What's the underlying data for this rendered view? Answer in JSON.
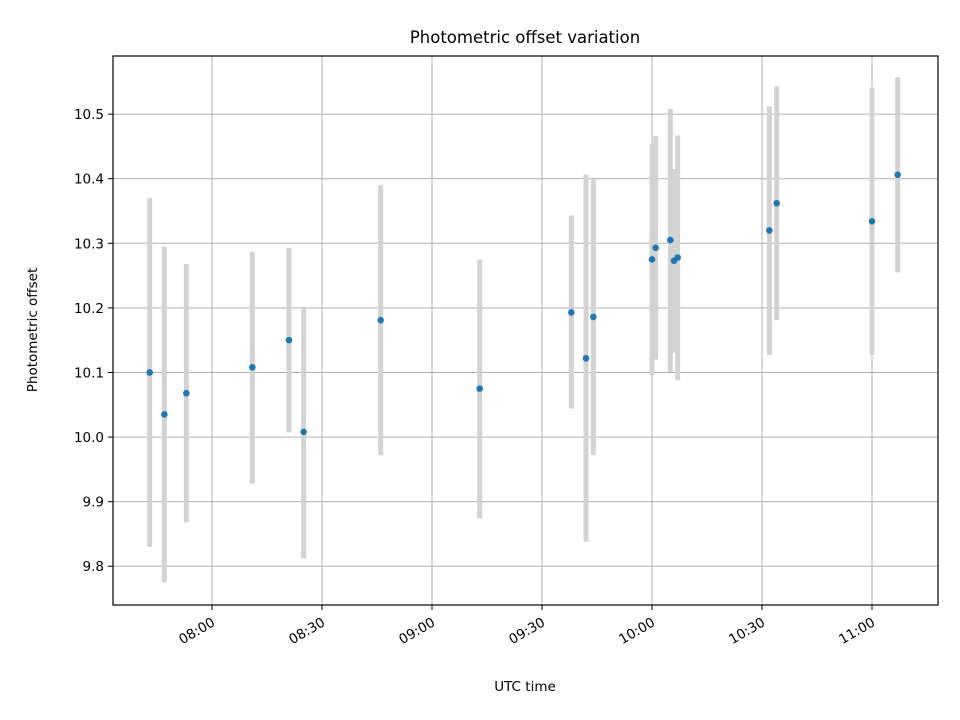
{
  "chart_data": {
    "type": "scatter",
    "title": "Photometric offset variation",
    "xlabel": "UTC time",
    "ylabel": "Photometric offset",
    "x_axis_kind": "time",
    "xlim": [
      "07:33",
      "11:18"
    ],
    "ylim": [
      9.74,
      10.59
    ],
    "grid": true,
    "x_ticks": [
      "08:00",
      "08:30",
      "09:00",
      "09:30",
      "10:00",
      "10:30",
      "11:00"
    ],
    "y_ticks": [
      "9.8",
      "9.9",
      "10.0",
      "10.1",
      "10.2",
      "10.3",
      "10.4",
      "10.5"
    ],
    "marker_color": "#1f77b4",
    "errorbar_color": "#d3d3d3",
    "points": [
      {
        "x": "07:43",
        "y": 10.1,
        "y_low": 9.83,
        "y_high": 10.37
      },
      {
        "x": "07:47",
        "y": 10.035,
        "y_low": 9.775,
        "y_high": 10.295
      },
      {
        "x": "07:53",
        "y": 10.068,
        "y_low": 9.868,
        "y_high": 10.268
      },
      {
        "x": "08:11",
        "y": 10.108,
        "y_low": 9.928,
        "y_high": 10.287
      },
      {
        "x": "08:21",
        "y": 10.15,
        "y_low": 10.007,
        "y_high": 10.293
      },
      {
        "x": "08:25",
        "y": 10.008,
        "y_low": 9.812,
        "y_high": 10.202
      },
      {
        "x": "08:46",
        "y": 10.181,
        "y_low": 9.972,
        "y_high": 10.39
      },
      {
        "x": "09:13",
        "y": 10.075,
        "y_low": 9.874,
        "y_high": 10.275
      },
      {
        "x": "09:38",
        "y": 10.193,
        "y_low": 10.044,
        "y_high": 10.343
      },
      {
        "x": "09:42",
        "y": 10.122,
        "y_low": 9.838,
        "y_high": 10.406
      },
      {
        "x": "09:44",
        "y": 10.186,
        "y_low": 9.972,
        "y_high": 10.399
      },
      {
        "x": "10:00",
        "y": 10.275,
        "y_low": 10.096,
        "y_high": 10.454
      },
      {
        "x": "10:01",
        "y": 10.293,
        "y_low": 10.12,
        "y_high": 10.466
      },
      {
        "x": "10:05",
        "y": 10.305,
        "y_low": 10.101,
        "y_high": 10.508
      },
      {
        "x": "10:06",
        "y": 10.273,
        "y_low": 10.131,
        "y_high": 10.415
      },
      {
        "x": "10:07",
        "y": 10.278,
        "y_low": 10.088,
        "y_high": 10.467
      },
      {
        "x": "10:32",
        "y": 10.32,
        "y_low": 10.127,
        "y_high": 10.512
      },
      {
        "x": "10:34",
        "y": 10.362,
        "y_low": 10.181,
        "y_high": 10.543
      },
      {
        "x": "11:00",
        "y": 10.334,
        "y_low": 10.127,
        "y_high": 10.541
      },
      {
        "x": "11:07",
        "y": 10.406,
        "y_low": 10.255,
        "y_high": 10.557
      }
    ]
  }
}
